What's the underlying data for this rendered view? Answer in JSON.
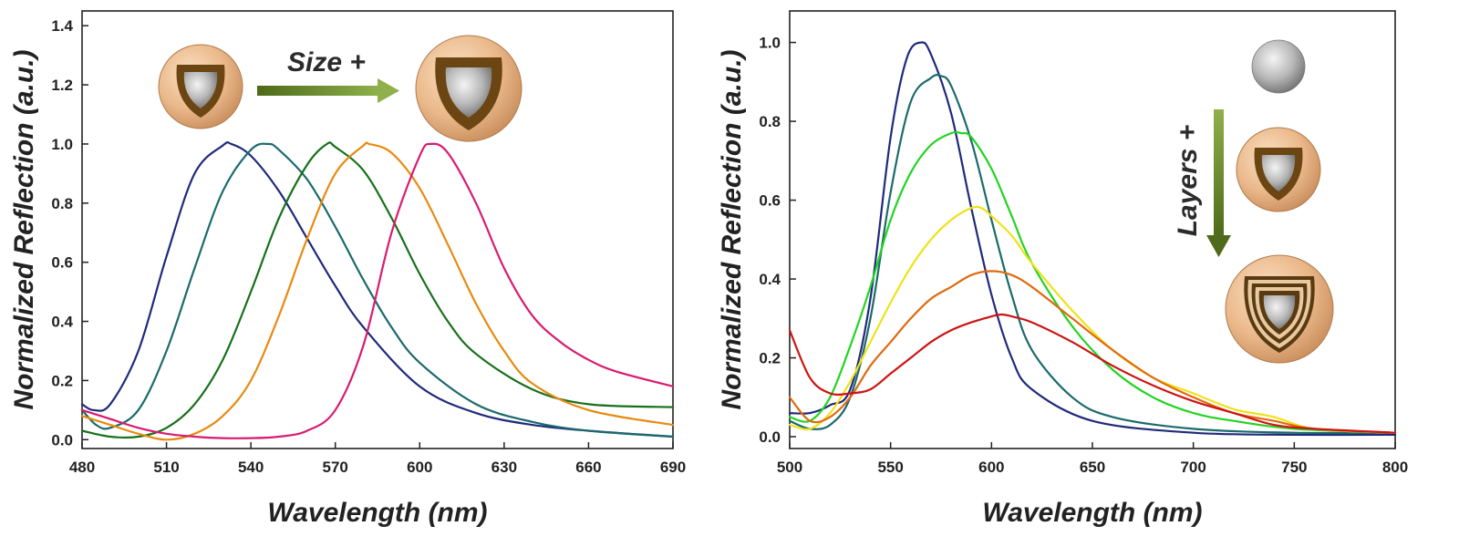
{
  "colors": {
    "navy": "#1f2a7a",
    "teal": "#1b6a6c",
    "dark_green": "#17701a",
    "orange": "#e88a10",
    "magenta": "#d81b6f",
    "bright_green": "#22d422",
    "yellow": "#efe21a",
    "orange2": "#e06a10",
    "red": "#cc1414",
    "arrow_green": "#6f8f2a"
  },
  "annotations": {
    "left_arrow_label": "Size +",
    "right_arrow_label": "Layers +",
    "left_icons": [
      "core-shell-particle-icon",
      "core-shell-particle-icon"
    ],
    "right_icons": [
      "core-sphere-icon",
      "core-shell-particle-icon",
      "multilayer-shell-particle-icon"
    ]
  },
  "chart_data": [
    {
      "type": "line",
      "xlabel": "Wavelength (nm)",
      "ylabel": "Normalized Reflection (a.u.)",
      "xlim": [
        480,
        690
      ],
      "ylim": [
        -0.03,
        1.45
      ],
      "xticks": [
        480,
        510,
        540,
        570,
        600,
        630,
        660,
        690
      ],
      "yticks": [
        0.0,
        0.2,
        0.4,
        0.6,
        0.8,
        1.0,
        1.2,
        1.4
      ],
      "xtick_labels": [
        "480",
        "510",
        "540",
        "570",
        "600",
        "630",
        "660",
        "690"
      ],
      "ytick_labels": [
        "0.0",
        "0.2",
        "0.4",
        "0.6",
        "0.8",
        "1.0",
        "1.2",
        "1.4"
      ],
      "grid": false,
      "series": [
        {
          "color": "#1f2a7a",
          "x": [
            480,
            484,
            490,
            500,
            510,
            520,
            530,
            533,
            540,
            550,
            560,
            570,
            580,
            600,
            620,
            640,
            660,
            690
          ],
          "y": [
            0.12,
            0.1,
            0.12,
            0.3,
            0.62,
            0.9,
            0.995,
            1.0,
            0.96,
            0.84,
            0.68,
            0.52,
            0.38,
            0.18,
            0.09,
            0.05,
            0.03,
            0.01
          ]
        },
        {
          "color": "#1b6a6c",
          "x": [
            480,
            485,
            490,
            500,
            510,
            520,
            530,
            540,
            546,
            550,
            560,
            570,
            580,
            590,
            600,
            620,
            640,
            660,
            690
          ],
          "y": [
            0.1,
            0.05,
            0.04,
            0.1,
            0.3,
            0.58,
            0.84,
            0.98,
            1.0,
            0.98,
            0.88,
            0.72,
            0.54,
            0.38,
            0.26,
            0.12,
            0.06,
            0.03,
            0.01
          ]
        },
        {
          "color": "#17701a",
          "x": [
            480,
            490,
            500,
            510,
            520,
            530,
            540,
            550,
            560,
            567,
            570,
            580,
            590,
            600,
            610,
            620,
            640,
            660,
            690
          ],
          "y": [
            0.03,
            0.01,
            0.01,
            0.04,
            0.12,
            0.27,
            0.5,
            0.75,
            0.93,
            1.0,
            0.99,
            0.91,
            0.75,
            0.56,
            0.4,
            0.29,
            0.17,
            0.12,
            0.11
          ]
        },
        {
          "color": "#e88a10",
          "x": [
            480,
            490,
            500,
            510,
            520,
            530,
            540,
            550,
            560,
            570,
            580,
            582,
            590,
            600,
            610,
            620,
            630,
            640,
            660,
            690
          ],
          "y": [
            0.08,
            0.05,
            0.02,
            0.0,
            0.02,
            0.08,
            0.2,
            0.42,
            0.68,
            0.9,
            0.995,
            1.0,
            0.97,
            0.85,
            0.66,
            0.46,
            0.3,
            0.19,
            0.1,
            0.05
          ]
        },
        {
          "color": "#d81b6f",
          "x": [
            480,
            490,
            500,
            510,
            520,
            530,
            540,
            550,
            560,
            570,
            580,
            590,
            600,
            604,
            610,
            620,
            630,
            640,
            650,
            660,
            670,
            690
          ],
          "y": [
            0.1,
            0.07,
            0.04,
            0.02,
            0.01,
            0.005,
            0.005,
            0.01,
            0.03,
            0.1,
            0.32,
            0.7,
            0.96,
            1.0,
            0.97,
            0.8,
            0.58,
            0.42,
            0.33,
            0.27,
            0.23,
            0.18
          ]
        }
      ]
    },
    {
      "type": "line",
      "xlabel": "Wavelength (nm)",
      "ylabel": "Normalized Reflection (a.u.)",
      "xlim": [
        500,
        800
      ],
      "ylim": [
        -0.03,
        1.08
      ],
      "xticks": [
        500,
        550,
        600,
        650,
        700,
        750,
        800
      ],
      "yticks": [
        0.0,
        0.2,
        0.4,
        0.6,
        0.8,
        1.0
      ],
      "xtick_labels": [
        "500",
        "550",
        "600",
        "650",
        "700",
        "750",
        "800"
      ],
      "ytick_labels": [
        "0.0",
        "0.2",
        "0.4",
        "0.6",
        "0.8",
        "1.0"
      ],
      "grid": false,
      "series": [
        {
          "color": "#1f2a7a",
          "x": [
            500,
            510,
            520,
            530,
            540,
            550,
            558,
            565,
            570,
            580,
            590,
            600,
            610,
            620,
            650,
            700,
            750,
            800
          ],
          "y": [
            0.06,
            0.06,
            0.08,
            0.12,
            0.35,
            0.76,
            0.96,
            1.0,
            0.97,
            0.82,
            0.58,
            0.36,
            0.2,
            0.12,
            0.04,
            0.01,
            0.005,
            0.005
          ]
        },
        {
          "color": "#1b6a6c",
          "x": [
            500,
            510,
            520,
            530,
            540,
            550,
            560,
            570,
            575,
            580,
            590,
            600,
            610,
            620,
            640,
            660,
            700,
            750,
            800
          ],
          "y": [
            0.04,
            0.02,
            0.03,
            0.1,
            0.3,
            0.62,
            0.85,
            0.91,
            0.915,
            0.89,
            0.75,
            0.55,
            0.36,
            0.22,
            0.1,
            0.05,
            0.02,
            0.01,
            0.01
          ]
        },
        {
          "color": "#22d422",
          "x": [
            500,
            510,
            520,
            530,
            540,
            550,
            560,
            570,
            580,
            585,
            590,
            600,
            610,
            620,
            640,
            660,
            680,
            700,
            720,
            750,
            800
          ],
          "y": [
            0.05,
            0.04,
            0.1,
            0.23,
            0.38,
            0.55,
            0.67,
            0.74,
            0.77,
            0.77,
            0.76,
            0.68,
            0.56,
            0.44,
            0.28,
            0.17,
            0.1,
            0.06,
            0.04,
            0.02,
            0.01
          ]
        },
        {
          "color": "#efe21a",
          "x": [
            500,
            510,
            520,
            530,
            540,
            550,
            560,
            570,
            580,
            590,
            595,
            600,
            610,
            620,
            640,
            660,
            680,
            700,
            720,
            740,
            760,
            800
          ],
          "y": [
            0.03,
            0.02,
            0.06,
            0.14,
            0.24,
            0.34,
            0.43,
            0.5,
            0.55,
            0.58,
            0.58,
            0.56,
            0.51,
            0.44,
            0.32,
            0.22,
            0.15,
            0.11,
            0.07,
            0.05,
            0.02,
            0.01
          ]
        },
        {
          "color": "#e06a10",
          "x": [
            500,
            510,
            520,
            530,
            540,
            550,
            560,
            570,
            580,
            590,
            600,
            610,
            620,
            640,
            660,
            680,
            700,
            720,
            740,
            760,
            800
          ],
          "y": [
            0.1,
            0.04,
            0.05,
            0.1,
            0.18,
            0.24,
            0.3,
            0.35,
            0.38,
            0.41,
            0.42,
            0.41,
            0.38,
            0.3,
            0.22,
            0.15,
            0.1,
            0.06,
            0.04,
            0.02,
            0.01
          ]
        },
        {
          "color": "#cc1414",
          "x": [
            500,
            510,
            520,
            530,
            540,
            550,
            560,
            570,
            580,
            590,
            600,
            605,
            610,
            620,
            640,
            660,
            680,
            700,
            720,
            740,
            760,
            800
          ],
          "y": [
            0.27,
            0.15,
            0.11,
            0.11,
            0.12,
            0.16,
            0.2,
            0.24,
            0.27,
            0.29,
            0.305,
            0.31,
            0.305,
            0.29,
            0.24,
            0.18,
            0.13,
            0.09,
            0.06,
            0.03,
            0.02,
            0.01
          ]
        }
      ]
    }
  ]
}
